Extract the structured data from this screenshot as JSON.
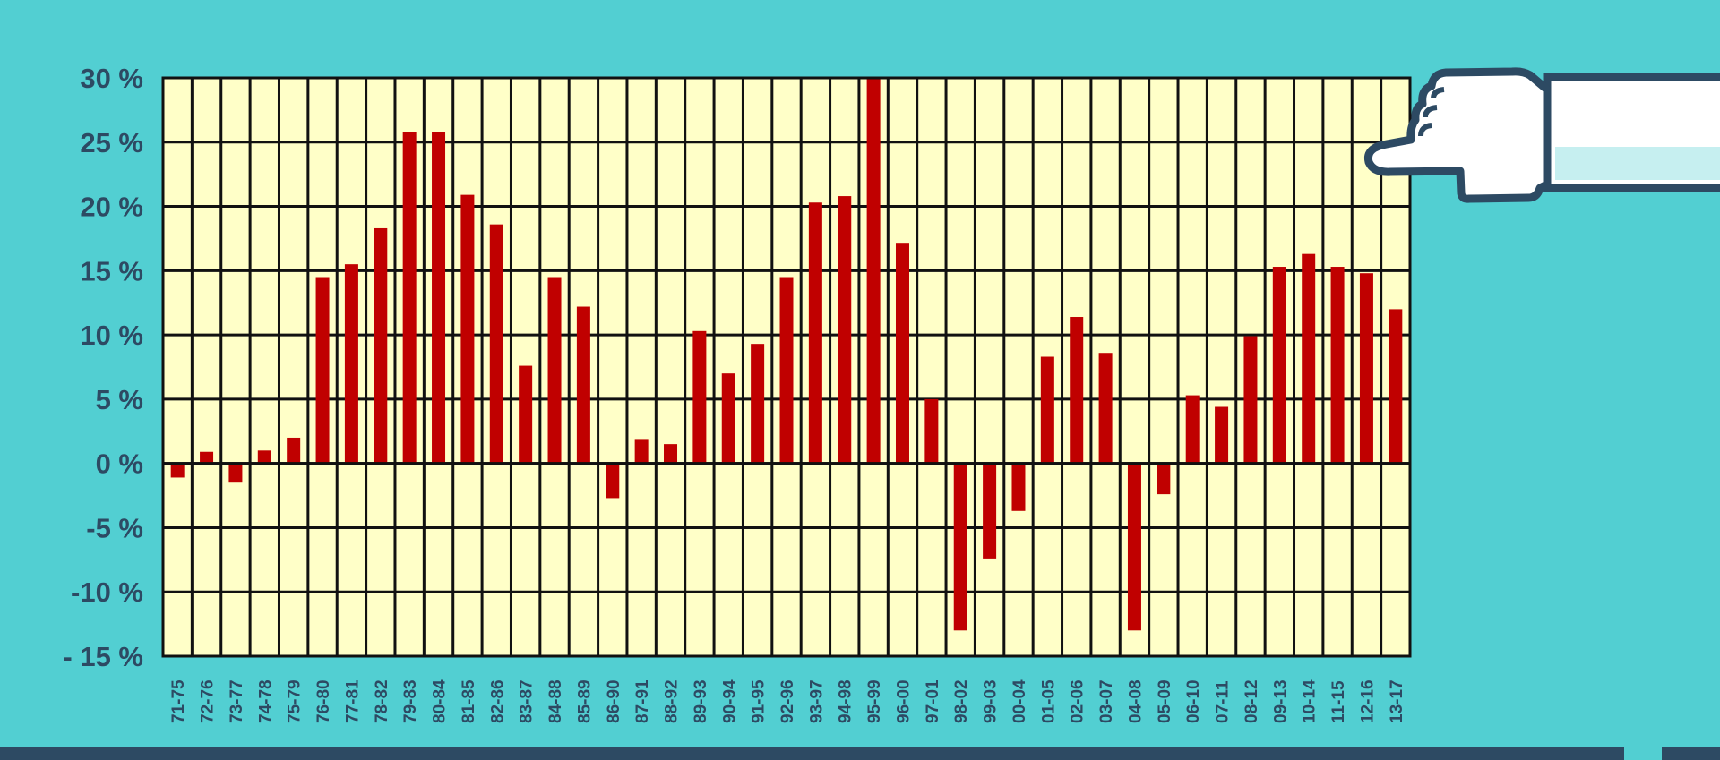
{
  "chart_data": {
    "type": "bar",
    "title": "",
    "xlabel": "",
    "ylabel": "",
    "ylim": [
      -15,
      30
    ],
    "yticks": [
      30,
      25,
      20,
      15,
      10,
      5,
      0,
      -5,
      -10,
      -15
    ],
    "ytick_labels": [
      "30 %",
      "25 %",
      "20 %",
      "15 %",
      "10 %",
      "5 %",
      "0 %",
      "-5 %",
      "-10 %",
      "- 15 %"
    ],
    "grid": true,
    "legend": "none",
    "colors": {
      "bar": "#c00000",
      "plot_background": "#ffffc8",
      "grid": "#111111",
      "page_background": "#52cfd2",
      "text": "#2d4a63"
    },
    "categories": [
      "71-75",
      "72-76",
      "73-77",
      "74-78",
      "75-79",
      "76-80",
      "77-81",
      "78-82",
      "79-83",
      "80-84",
      "81-85",
      "82-86",
      "83-87",
      "84-88",
      "85-89",
      "86-90",
      "87-91",
      "88-92",
      "89-93",
      "90-94",
      "91-95",
      "92-96",
      "93-97",
      "94-98",
      "95-99",
      "96-00",
      "97-01",
      "98-02",
      "99-03",
      "00-04",
      "01-05",
      "02-06",
      "03-07",
      "04-08",
      "05-09",
      "06-10",
      "07-11",
      "08-12",
      "09-13",
      "10-14",
      "11-15",
      "12-16",
      "13-17"
    ],
    "values": [
      -1.1,
      0.9,
      -1.5,
      1.0,
      2.0,
      14.5,
      15.5,
      18.3,
      25.8,
      25.8,
      20.9,
      18.6,
      7.6,
      14.5,
      12.2,
      -2.7,
      1.9,
      1.5,
      10.3,
      7.0,
      9.3,
      14.5,
      20.3,
      20.8,
      30.0,
      17.1,
      5.0,
      -13.0,
      -7.4,
      -3.7,
      8.3,
      11.4,
      8.6,
      -13.0,
      -2.4,
      5.3,
      4.4,
      9.9,
      15.3,
      16.3,
      15.3,
      14.8,
      12.0
    ]
  },
  "decor": {
    "pointer": "pointing-hand-icon"
  }
}
